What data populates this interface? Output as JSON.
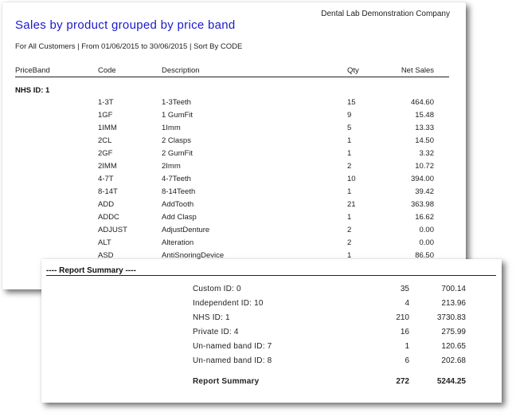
{
  "report": {
    "company": "Dental Lab Demonstration Company",
    "title": "Sales by product grouped by price band",
    "subtitle": "For All Customers | From 01/06/2015 to 30/06/2015 | Sort By CODE",
    "headers": {
      "price_band": "PriceBand",
      "code": "Code",
      "description": "Description",
      "qty": "Qty",
      "net_sales": "Net Sales"
    },
    "group_label": "NHS ID: 1",
    "rows": [
      {
        "code": "1-3T",
        "description": "1-3Teeth",
        "qty": "15",
        "net": "464.60"
      },
      {
        "code": "1GF",
        "description": "1 GumFit",
        "qty": "9",
        "net": "15.48"
      },
      {
        "code": "1IMM",
        "description": "1Imm",
        "qty": "5",
        "net": "13.33"
      },
      {
        "code": "2CL",
        "description": "2 Clasps",
        "qty": "1",
        "net": "14.50"
      },
      {
        "code": "2GF",
        "description": "2 GumFit",
        "qty": "1",
        "net": "3.32"
      },
      {
        "code": "2IMM",
        "description": "2Imm",
        "qty": "2",
        "net": "10.72"
      },
      {
        "code": "4-7T",
        "description": "4-7Teeth",
        "qty": "10",
        "net": "394.00"
      },
      {
        "code": "8-14T",
        "description": "8-14Teeth",
        "qty": "1",
        "net": "39.42"
      },
      {
        "code": "ADD",
        "description": "AddTooth",
        "qty": "21",
        "net": "363.98"
      },
      {
        "code": "ADDC",
        "description": "Add Clasp",
        "qty": "1",
        "net": "16.62"
      },
      {
        "code": "ADJUST",
        "description": "AdjustDenture",
        "qty": "2",
        "net": "0.00"
      },
      {
        "code": "ALT",
        "description": "Alteration",
        "qty": "2",
        "net": "0.00"
      },
      {
        "code": "ASD",
        "description": "AntiSnoringDevice",
        "qty": "1",
        "net": "86.50"
      }
    ]
  },
  "summary": {
    "heading": "---- Report Summary ----",
    "rows": [
      {
        "label": "Custom  ID:  0",
        "qty": "35",
        "net": "700.14"
      },
      {
        "label": "Independent  ID:  10",
        "qty": "4",
        "net": "213.96"
      },
      {
        "label": "NHS  ID:  1",
        "qty": "210",
        "net": "3730.83"
      },
      {
        "label": "Private  ID:  4",
        "qty": "16",
        "net": "275.99"
      },
      {
        "label": "Un-named  band  ID:  7",
        "qty": "1",
        "net": "120.65"
      },
      {
        "label": "Un-named  band  ID:  8",
        "qty": "6",
        "net": "202.68"
      }
    ],
    "total": {
      "label": "Report Summary",
      "qty": "272",
      "net": "5244.25"
    }
  }
}
